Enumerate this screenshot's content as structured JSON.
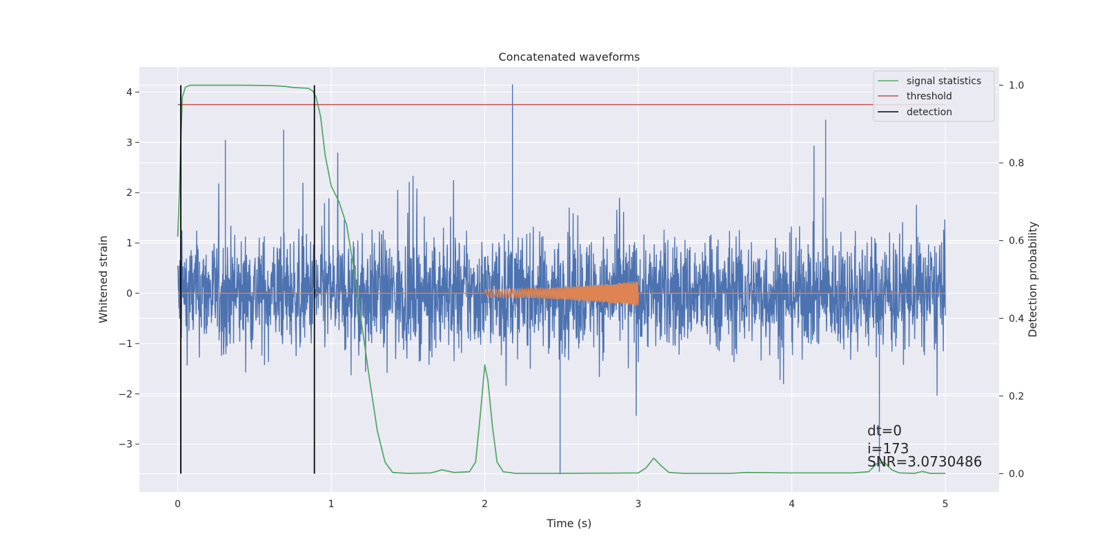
{
  "chart_data": {
    "type": "line",
    "title": "Concatenated waveforms",
    "xlabel": "Time (s)",
    "ylabel": "Whitened strain",
    "y2label": "Detection probability",
    "xlim": [
      -0.25,
      5.35
    ],
    "ylim": [
      -3.95,
      4.5
    ],
    "y2lim": [
      -0.047,
      1.047
    ],
    "xticks": [
      0,
      1,
      2,
      3,
      4,
      5
    ],
    "yticks": [
      4,
      3,
      2,
      1,
      0,
      -1,
      -2,
      -3
    ],
    "y2ticks": [
      1.0,
      0.8,
      0.6,
      0.4,
      0.2,
      0.0
    ],
    "y2tick_labels": [
      "1.0",
      "0.8",
      "0.6",
      "0.4",
      "0.2",
      "0.0"
    ],
    "ytick_labels": [
      "4",
      "3",
      "2",
      "1",
      "0",
      "−1",
      "−2",
      "−3"
    ],
    "grid": true,
    "legend_position": "top-right",
    "colors": {
      "background": "#eaeaf2",
      "strain": "#4c72b0",
      "template": "#dd8452",
      "signal_statistics": "#55a868",
      "threshold": "#c44e52",
      "detection": "#000000"
    },
    "series": [
      {
        "name": "signal statistics",
        "axis": "right",
        "x": [
          0.0,
          0.01,
          0.02,
          0.03,
          0.05,
          0.08,
          0.12,
          0.2,
          0.4,
          0.6,
          0.7,
          0.75,
          0.8,
          0.85,
          0.88,
          0.9,
          0.93,
          0.96,
          1.0,
          1.05,
          1.1,
          1.15,
          1.2,
          1.25,
          1.3,
          1.35,
          1.4,
          1.5,
          1.65,
          1.72,
          1.8,
          1.9,
          1.94,
          1.97,
          2.0,
          2.02,
          2.05,
          2.08,
          2.12,
          2.2,
          2.5,
          3.0,
          3.05,
          3.1,
          3.15,
          3.2,
          3.3,
          3.6,
          3.7,
          4.0,
          4.4,
          4.5,
          4.55,
          4.6,
          4.65,
          4.7,
          4.8,
          4.85,
          4.9,
          5.0
        ],
        "y": [
          0.61,
          0.72,
          0.86,
          0.97,
          0.995,
          1.0,
          1.0,
          1.0,
          1.0,
          0.999,
          0.997,
          0.994,
          0.993,
          0.992,
          0.985,
          0.97,
          0.92,
          0.82,
          0.74,
          0.7,
          0.64,
          0.52,
          0.38,
          0.24,
          0.11,
          0.03,
          0.003,
          0.001,
          0.002,
          0.01,
          0.003,
          0.005,
          0.03,
          0.15,
          0.28,
          0.24,
          0.12,
          0.03,
          0.005,
          0.001,
          0.001,
          0.002,
          0.015,
          0.04,
          0.02,
          0.003,
          0.001,
          0.001,
          0.003,
          0.002,
          0.002,
          0.005,
          0.025,
          0.03,
          0.01,
          0.002,
          0.001,
          0.006,
          0.001,
          0.001
        ]
      },
      {
        "name": "threshold",
        "axis": "right",
        "x": [
          0.0,
          5.0
        ],
        "y": [
          0.95,
          0.95
        ]
      },
      {
        "name": "detection",
        "axis": "right",
        "x": [
          0.02,
          0.89
        ],
        "y": [
          0.0,
          1.0
        ]
      },
      {
        "axis": "left",
        "x": [
          0.0,
          5.0
        ],
        "amplitude_range": [
          -3.6,
          4.15
        ],
        "note": "noisy whitened strain",
        "peaks": [
          {
            "x": 2.18,
            "y": 4.15
          },
          {
            "x": 4.22,
            "y": 3.45
          },
          {
            "x": 0.69,
            "y": 3.25
          },
          {
            "x": 0.31,
            "y": 3.05
          },
          {
            "x": 2.49,
            "y": -3.6
          },
          {
            "x": 4.57,
            "y": -3.55
          }
        ]
      },
      {
        "axis": "left",
        "x": [
          0.0,
          5.0
        ],
        "chirp_start": 2.0,
        "chirp_end": 3.0,
        "chirp_amplitude": [
          0.08,
          0.25
        ]
      }
    ],
    "annotations": [
      "dt=0",
      "i=173",
      "SNR=3.0730486"
    ]
  }
}
